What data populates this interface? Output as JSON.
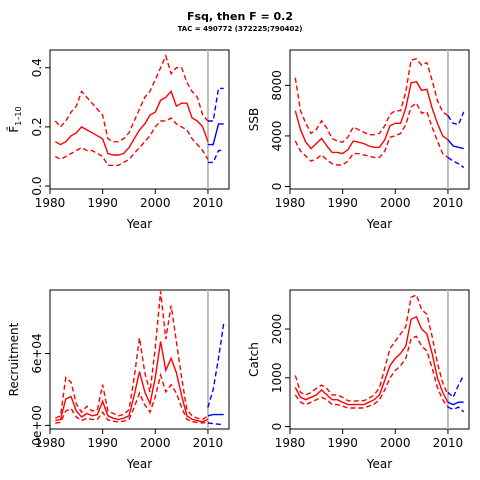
{
  "header": {
    "title": "Fsq, then F = 0.2",
    "subtitle": "TAC = 490772 (372225;790402)"
  },
  "colors": {
    "history": "#ff0000",
    "projection": "#0000ff",
    "marker": "#bebebe"
  },
  "chart_data": [
    {
      "id": "fbar",
      "type": "line",
      "xlabel": "Year",
      "ylabel": "F̄",
      "ylabel_sub": "1–10",
      "xlim": [
        1980,
        2014
      ],
      "ylim": [
        -0.01,
        0.46
      ],
      "xticks": [
        1980,
        1990,
        2000,
        2010
      ],
      "yticks": [
        0.0,
        0.2,
        0.4
      ],
      "ytick_labels": [
        "0.0",
        "0.2",
        "0.4"
      ],
      "vline": 2010,
      "history": {
        "x": [
          1981,
          1982,
          1983,
          1984,
          1985,
          1986,
          1987,
          1988,
          1989,
          1990,
          1991,
          1992,
          1993,
          1994,
          1995,
          1996,
          1997,
          1998,
          1999,
          2000,
          2001,
          2002,
          2003,
          2004,
          2005,
          2006,
          2007,
          2008,
          2009,
          2010
        ],
        "median": [
          0.15,
          0.14,
          0.15,
          0.17,
          0.18,
          0.2,
          0.19,
          0.18,
          0.17,
          0.16,
          0.11,
          0.105,
          0.105,
          0.11,
          0.13,
          0.16,
          0.19,
          0.21,
          0.24,
          0.25,
          0.29,
          0.3,
          0.32,
          0.27,
          0.28,
          0.28,
          0.23,
          0.22,
          0.2,
          0.15
        ],
        "upper": [
          0.22,
          0.2,
          0.22,
          0.25,
          0.27,
          0.32,
          0.3,
          0.28,
          0.26,
          0.24,
          0.16,
          0.15,
          0.15,
          0.16,
          0.18,
          0.22,
          0.26,
          0.3,
          0.32,
          0.36,
          0.4,
          0.44,
          0.38,
          0.4,
          0.4,
          0.35,
          0.32,
          0.3,
          0.24,
          0.22
        ],
        "lower": [
          0.1,
          0.09,
          0.1,
          0.11,
          0.12,
          0.13,
          0.12,
          0.12,
          0.11,
          0.1,
          0.07,
          0.07,
          0.07,
          0.08,
          0.09,
          0.11,
          0.13,
          0.15,
          0.17,
          0.2,
          0.22,
          0.22,
          0.23,
          0.21,
          0.2,
          0.19,
          0.16,
          0.14,
          0.12,
          0.09
        ]
      },
      "projection": {
        "x": [
          2010,
          2011,
          2012,
          2013
        ],
        "median": [
          0.14,
          0.14,
          0.21,
          0.21
        ],
        "upper": [
          0.22,
          0.22,
          0.33,
          0.33
        ],
        "lower": [
          0.08,
          0.08,
          0.12,
          0.12
        ]
      }
    },
    {
      "id": "ssb",
      "type": "line",
      "xlabel": "Year",
      "ylabel": "SSB",
      "ylabel_sub": "",
      "xlim": [
        1980,
        2014
      ],
      "ylim": [
        -200,
        10800
      ],
      "xticks": [
        1980,
        1990,
        2000,
        2010
      ],
      "yticks": [
        0,
        4000,
        8000
      ],
      "ytick_labels": [
        "0",
        "4000",
        "8000"
      ],
      "vline": 2010,
      "history": {
        "x": [
          1981,
          1982,
          1983,
          1984,
          1985,
          1986,
          1987,
          1988,
          1989,
          1990,
          1991,
          1992,
          1993,
          1994,
          1995,
          1996,
          1997,
          1998,
          1999,
          2000,
          2001,
          2002,
          2003,
          2004,
          2005,
          2006,
          2007,
          2008,
          2009,
          2010
        ],
        "median": [
          6000,
          4500,
          3500,
          3000,
          3400,
          3800,
          3200,
          2700,
          2700,
          2600,
          2900,
          3600,
          3500,
          3400,
          3200,
          3100,
          3100,
          3700,
          4800,
          5000,
          5000,
          6200,
          8200,
          8300,
          7600,
          7700,
          6200,
          5000,
          4000,
          3700
        ],
        "upper": [
          8600,
          6000,
          5000,
          4200,
          4500,
          5200,
          4600,
          3800,
          3600,
          3500,
          3900,
          4700,
          4500,
          4300,
          4100,
          4100,
          4200,
          4800,
          5700,
          6000,
          6000,
          7500,
          10000,
          10100,
          9600,
          9800,
          8400,
          6800,
          5900,
          5600
        ],
        "lower": [
          3600,
          2800,
          2400,
          2000,
          2200,
          2500,
          2100,
          1800,
          1700,
          1700,
          2000,
          2600,
          2600,
          2500,
          2400,
          2300,
          2300,
          2800,
          3900,
          4000,
          4200,
          4900,
          6300,
          6600,
          5800,
          5900,
          4700,
          3600,
          2600,
          2300
        ]
      },
      "projection": {
        "x": [
          2010,
          2011,
          2012,
          2013
        ],
        "median": [
          3700,
          3200,
          3100,
          3000
        ],
        "upper": [
          5600,
          5000,
          4900,
          5900
        ],
        "lower": [
          2300,
          2000,
          1800,
          1500
        ]
      }
    },
    {
      "id": "recruitment",
      "type": "line",
      "xlabel": "Year",
      "ylabel": "Recruitment",
      "ylabel_sub": "",
      "xlim": [
        1980,
        2014
      ],
      "ylim": [
        -3000,
        113000
      ],
      "xticks": [
        1980,
        1990,
        2000,
        2010
      ],
      "yticks": [
        0,
        60000
      ],
      "ytick_labels": [
        "0e+00",
        "6e+04"
      ],
      "vline": 2010,
      "history": {
        "x": [
          1981,
          1982,
          1983,
          1984,
          1985,
          1986,
          1987,
          1988,
          1989,
          1990,
          1991,
          1992,
          1993,
          1994,
          1995,
          1996,
          1997,
          1998,
          1999,
          2000,
          2001,
          2002,
          2003,
          2004,
          2005,
          2006,
          2007,
          2008,
          2009,
          2010
        ],
        "median": [
          4000,
          5000,
          22000,
          24000,
          12000,
          7000,
          10000,
          8000,
          9000,
          20000,
          8000,
          6000,
          5000,
          6000,
          8000,
          25000,
          45000,
          28000,
          18000,
          40000,
          70000,
          46000,
          56000,
          44000,
          25000,
          8000,
          5000,
          4000,
          3000,
          5000
        ],
        "upper": [
          6000,
          8000,
          40000,
          36000,
          18000,
          11000,
          16000,
          12000,
          13000,
          34000,
          12000,
          10000,
          8000,
          9000,
          13000,
          40000,
          73000,
          44000,
          28000,
          65000,
          112000,
          72000,
          100000,
          70000,
          40000,
          13000,
          8000,
          6000,
          5000,
          8000
        ],
        "lower": [
          2000,
          2500,
          12000,
          14000,
          7000,
          4000,
          6000,
          5000,
          5000,
          11000,
          4500,
          3500,
          3000,
          3500,
          5000,
          15000,
          27000,
          17000,
          11000,
          24000,
          42000,
          28000,
          34000,
          27000,
          15000,
          5000,
          3000,
          2500,
          2000,
          3000
        ]
      },
      "projection": {
        "x": [
          2010,
          2011,
          2012,
          2013
        ],
        "median": [
          8000,
          9000,
          9000,
          9000
        ],
        "upper": [
          15000,
          30000,
          56000,
          85000
        ],
        "lower": [
          2000,
          1500,
          1000,
          500
        ]
      }
    },
    {
      "id": "catch",
      "type": "line",
      "xlabel": "Year",
      "ylabel": "Catch",
      "ylabel_sub": "",
      "xlim": [
        1980,
        2014
      ],
      "ylim": [
        -50,
        2800
      ],
      "xticks": [
        1980,
        1990,
        2000,
        2010
      ],
      "yticks": [
        0,
        1000,
        2000
      ],
      "ytick_labels": [
        "0",
        "1000",
        "2000"
      ],
      "vline": 2010,
      "history": {
        "x": [
          1981,
          1982,
          1983,
          1984,
          1985,
          1986,
          1987,
          1988,
          1989,
          1990,
          1991,
          1992,
          1993,
          1994,
          1995,
          1996,
          1997,
          1998,
          1999,
          2000,
          2001,
          2002,
          2003,
          2004,
          2005,
          2006,
          2007,
          2008,
          2009,
          2010
        ],
        "median": [
          800,
          600,
          550,
          600,
          650,
          750,
          650,
          550,
          550,
          500,
          450,
          450,
          450,
          450,
          500,
          550,
          650,
          950,
          1250,
          1400,
          1500,
          1650,
          2200,
          2250,
          2000,
          1900,
          1500,
          1000,
          700,
          500
        ],
        "upper": [
          1050,
          700,
          650,
          700,
          780,
          850,
          780,
          650,
          650,
          600,
          530,
          520,
          530,
          530,
          580,
          650,
          800,
          1200,
          1600,
          1750,
          1900,
          2050,
          2650,
          2700,
          2400,
          2300,
          1850,
          1300,
          900,
          650
        ],
        "lower": [
          650,
          500,
          450,
          500,
          550,
          600,
          550,
          450,
          450,
          420,
          380,
          380,
          380,
          380,
          420,
          460,
          550,
          750,
          1000,
          1150,
          1250,
          1400,
          1800,
          1850,
          1650,
          1550,
          1200,
          800,
          550,
          400
        ]
      },
      "projection": {
        "x": [
          2010,
          2011,
          2012,
          2013
        ],
        "median": [
          500,
          450,
          500,
          500
        ],
        "upper": [
          700,
          600,
          850,
          1050
        ],
        "lower": [
          400,
          350,
          400,
          300
        ]
      }
    }
  ]
}
